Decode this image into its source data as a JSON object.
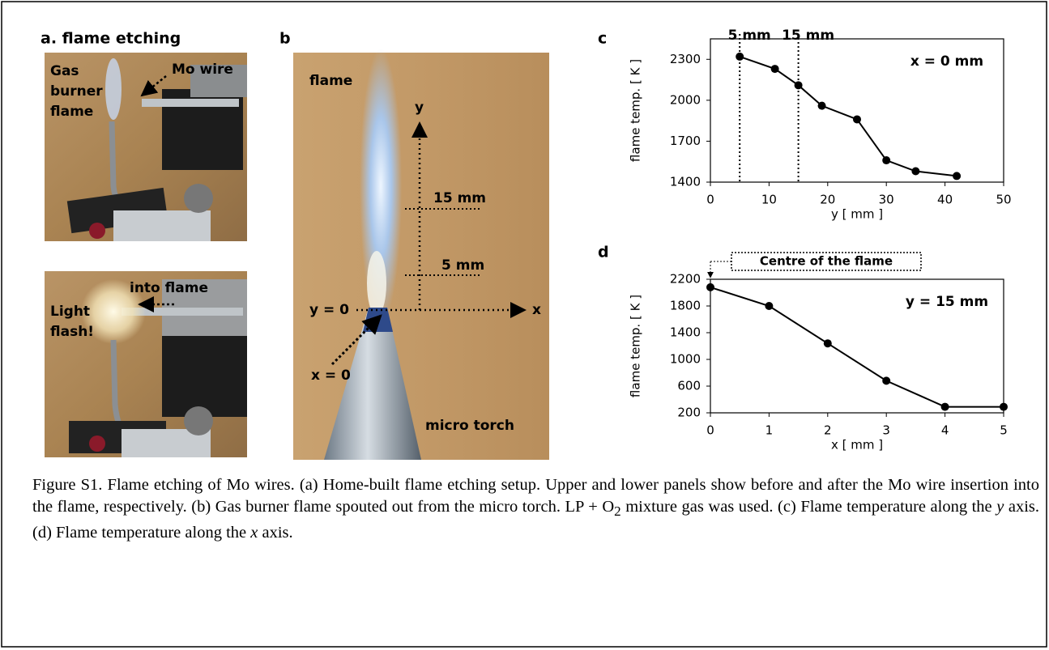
{
  "panels": {
    "a": {
      "label": "a. flame etching",
      "top": {
        "gas": "Gas",
        "burner": "burner",
        "flame": "flame",
        "wire": "Mo wire"
      },
      "bottom": {
        "into": "into flame",
        "light": "Light",
        "flash": "flash!"
      }
    },
    "b": {
      "label": "b",
      "flame": "flame",
      "y_axis": "y",
      "mark_15": "15 mm",
      "mark_5": "5 mm",
      "y0": "y = 0",
      "x_axis": "x",
      "x0": "x = 0",
      "torch": "micro torch"
    }
  },
  "chart_data": [
    {
      "type": "line",
      "panel_label": "c",
      "x": [
        5,
        11,
        15,
        19,
        25,
        30,
        35,
        42
      ],
      "values": [
        2320,
        2230,
        2110,
        1960,
        1860,
        1560,
        1480,
        1445
      ],
      "color": "#000000",
      "xlim": [
        0,
        50
      ],
      "xticks": [
        0,
        10,
        20,
        30,
        40,
        50
      ],
      "ylim": [
        1400,
        2450
      ],
      "yticks": [
        1400,
        1700,
        2000,
        2300
      ],
      "xlabel": "y [ mm ]",
      "ylabel": "flame temp. [ K ]",
      "annotation": "x = 0 mm",
      "vlines": [
        {
          "x": 5,
          "label": "5 mm"
        },
        {
          "x": 15,
          "label": "15 mm"
        }
      ]
    },
    {
      "type": "line",
      "panel_label": "d",
      "x": [
        0,
        1,
        2,
        3,
        4,
        5
      ],
      "values": [
        2080,
        1800,
        1240,
        680,
        290,
        290
      ],
      "color": "#000000",
      "xlim": [
        0,
        5
      ],
      "xticks": [
        0,
        1,
        2,
        3,
        4,
        5
      ],
      "ylim": [
        200,
        2200
      ],
      "yticks": [
        200,
        600,
        1000,
        1400,
        1800,
        2200
      ],
      "xlabel": "x [ mm ]",
      "ylabel": "flame temp. [ K ]",
      "annotation": "y = 15 mm",
      "callout": "Centre of the flame"
    }
  ],
  "caption": [
    "Figure S1. Flame etching of Mo wires. (a) Home-built flame etching setup. Upper and lower panels show before and after the Mo wire insertion into the flame, respectively. (b) Gas burner flame spouted out from the micro torch. LP + O",
    "2",
    " mixture gas was used. (c) Flame temperature along the ",
    "y",
    " axis. (d) Flame temperature along the ",
    "x",
    " axis."
  ]
}
